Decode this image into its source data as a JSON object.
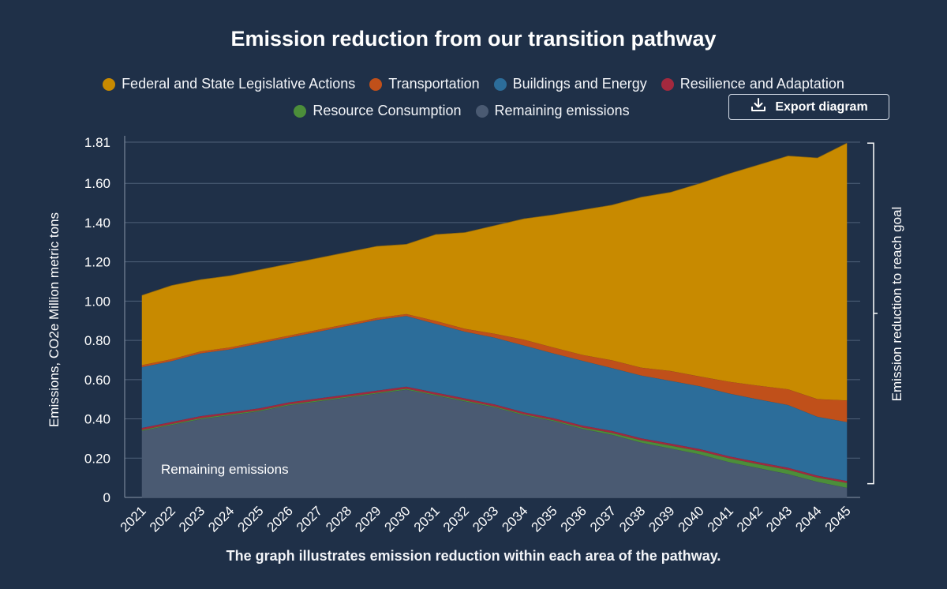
{
  "export": {
    "label": "Export diagram"
  },
  "chart_data": {
    "type": "area",
    "stacked": true,
    "title": "Emission reduction from our transition pathway",
    "caption": "The graph illustrates emission reduction within each area of the pathway.",
    "ylabel": "Emissions, CO2e Million metric tons",
    "right_label": "Emission reduction to reach goal",
    "in_chart_label": "Remaining emissions",
    "ylim": [
      0,
      1.81
    ],
    "y_ticks": [
      "0",
      "0.20",
      "0.40",
      "0.60",
      "0.80",
      "1.00",
      "1.20",
      "1.40",
      "1.60",
      "1.81"
    ],
    "y_tick_values": [
      0,
      0.2,
      0.4,
      0.6,
      0.8,
      1.0,
      1.2,
      1.4,
      1.6,
      1.81
    ],
    "legend_position": "top-center",
    "grid": true,
    "x": [
      "2021",
      "2022",
      "2023",
      "2024",
      "2025",
      "2026",
      "2027",
      "2028",
      "2029",
      "2030",
      "2031",
      "2032",
      "2033",
      "2034",
      "2035",
      "2036",
      "2037",
      "2038",
      "2039",
      "2040",
      "2041",
      "2042",
      "2043",
      "2044",
      "2045"
    ],
    "series": [
      {
        "name": "Remaining emissions",
        "color": "#4a5a72",
        "values": [
          0.34,
          0.37,
          0.4,
          0.42,
          0.44,
          0.47,
          0.49,
          0.51,
          0.53,
          0.55,
          0.52,
          0.49,
          0.46,
          0.42,
          0.39,
          0.35,
          0.32,
          0.28,
          0.25,
          0.22,
          0.18,
          0.15,
          0.12,
          0.08,
          0.05
        ]
      },
      {
        "name": "Resource Consumption",
        "color": "#4c8e3a",
        "values": [
          0.005,
          0.005,
          0.005,
          0.005,
          0.005,
          0.005,
          0.005,
          0.005,
          0.005,
          0.005,
          0.005,
          0.005,
          0.005,
          0.005,
          0.005,
          0.007,
          0.01,
          0.012,
          0.015,
          0.017,
          0.02,
          0.02,
          0.022,
          0.022,
          0.025
        ]
      },
      {
        "name": "Resilience and Adaptation",
        "color": "#a3293e",
        "values": [
          0.01,
          0.01,
          0.01,
          0.01,
          0.01,
          0.01,
          0.01,
          0.01,
          0.01,
          0.01,
          0.01,
          0.01,
          0.01,
          0.01,
          0.01,
          0.01,
          0.01,
          0.01,
          0.01,
          0.01,
          0.01,
          0.01,
          0.01,
          0.01,
          0.01
        ]
      },
      {
        "name": "Buildings and Energy",
        "color": "#2c6d9a",
        "values": [
          0.31,
          0.31,
          0.32,
          0.32,
          0.33,
          0.33,
          0.34,
          0.35,
          0.36,
          0.36,
          0.35,
          0.34,
          0.34,
          0.34,
          0.33,
          0.33,
          0.32,
          0.32,
          0.32,
          0.32,
          0.32,
          0.32,
          0.32,
          0.3,
          0.3
        ]
      },
      {
        "name": "Transportation",
        "color": "#c0501a",
        "values": [
          0.01,
          0.01,
          0.01,
          0.01,
          0.01,
          0.01,
          0.01,
          0.01,
          0.01,
          0.01,
          0.015,
          0.015,
          0.02,
          0.03,
          0.03,
          0.03,
          0.04,
          0.04,
          0.05,
          0.05,
          0.06,
          0.07,
          0.08,
          0.09,
          0.11
        ]
      },
      {
        "name": "Federal and State Legislative Actions",
        "color": "#c88a00",
        "values": [
          0.355,
          0.375,
          0.365,
          0.365,
          0.365,
          0.365,
          0.365,
          0.365,
          0.365,
          0.355,
          0.44,
          0.49,
          0.55,
          0.615,
          0.675,
          0.738,
          0.79,
          0.868,
          0.91,
          0.983,
          1.06,
          1.125,
          1.188,
          1.228,
          1.31
        ]
      }
    ],
    "legend_rows": [
      [
        "Federal and State Legislative Actions",
        "Transportation",
        "Buildings and Energy",
        "Resilience and Adaptation"
      ],
      [
        "Resource Consumption",
        "Remaining emissions"
      ]
    ]
  }
}
